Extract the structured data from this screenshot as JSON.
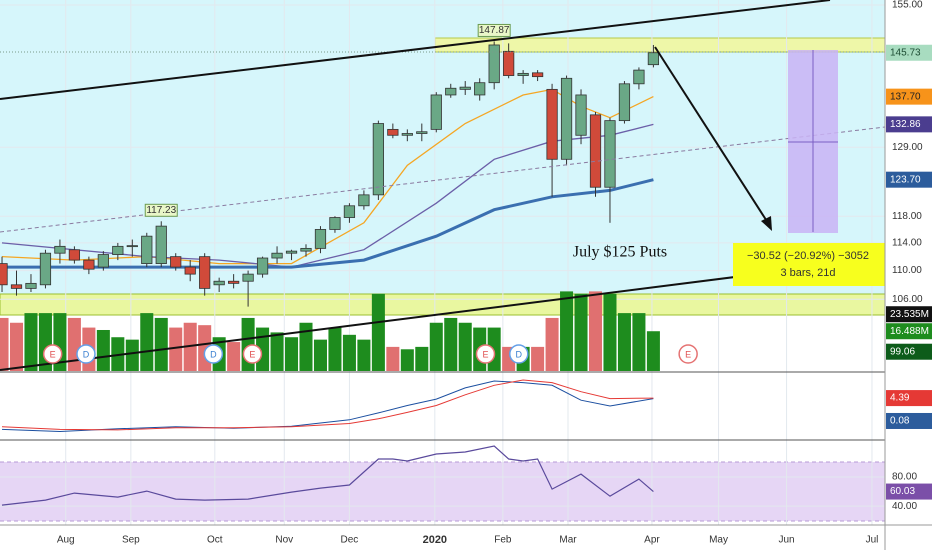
{
  "chart_data": {
    "type": "candlestick",
    "xlim": [
      -0.14,
      61
    ],
    "xticks": [
      {
        "value": 4.4,
        "label": "Aug"
      },
      {
        "value": 8.9,
        "label": "Sep"
      },
      {
        "value": 14.7,
        "label": "Oct"
      },
      {
        "value": 19.5,
        "label": "Nov"
      },
      {
        "value": 24.0,
        "label": "Dec"
      },
      {
        "value": 29.9,
        "label": "2020"
      },
      {
        "value": 34.6,
        "label": "Feb"
      },
      {
        "value": 39.1,
        "label": "Mar"
      },
      {
        "value": 44.9,
        "label": "Apr"
      },
      {
        "value": 49.5,
        "label": "May"
      },
      {
        "value": 54.2,
        "label": "Jun"
      },
      {
        "value": 60.1,
        "label": "Jul"
      }
    ],
    "ylim": [
      96.5,
      156
    ],
    "log": true,
    "grid": true,
    "yticks": [
      {
        "value": 155,
        "label": "155.00"
      },
      {
        "value": 129,
        "label": "129.00"
      },
      {
        "value": 118,
        "label": "118.00"
      },
      {
        "value": 114,
        "label": "114.00"
      },
      {
        "value": 110,
        "label": "110.00"
      },
      {
        "value": 106,
        "label": "106.00"
      }
    ],
    "up_color": "#6aa886",
    "down_color": "#d04a3a",
    "open": [
      111,
      108,
      107.5,
      108,
      112.5,
      113,
      111.5,
      110.5,
      112.3,
      113.5,
      111,
      111,
      112,
      110.5,
      112,
      108,
      108.5,
      108.5,
      109.5,
      111.8,
      112.5,
      112.8,
      113.2,
      116,
      117.8,
      119.6,
      121.3,
      132,
      131,
      131.3,
      132,
      138,
      139,
      138,
      140.2,
      146,
      141.5,
      142,
      139,
      127,
      131,
      134.5,
      122.5,
      133.5,
      140,
      143.5
    ],
    "high": [
      112,
      110,
      109.5,
      113,
      114.5,
      113.5,
      112,
      112.8,
      114,
      114.5,
      115.5,
      117.23,
      112.5,
      111.5,
      112.5,
      109,
      109.5,
      110,
      112,
      113.5,
      113,
      113.8,
      116.5,
      118,
      120,
      122,
      133.5,
      133,
      132,
      133,
      138.5,
      140,
      140.5,
      141,
      147.87,
      147.5,
      142.5,
      142.5,
      140,
      141.5,
      139,
      135,
      134,
      140.5,
      143,
      147.2
    ],
    "low": [
      107,
      106.5,
      107,
      107.5,
      111,
      111,
      109.5,
      110,
      111.5,
      112,
      110.5,
      110.5,
      110,
      108.5,
      106.5,
      107,
      107.5,
      105,
      109,
      111,
      111.5,
      112,
      112.5,
      115.5,
      117,
      119,
      120.5,
      130.5,
      130,
      130,
      131.5,
      137.5,
      138,
      137,
      139,
      141,
      140,
      140.5,
      121,
      126,
      129.5,
      121,
      117,
      133,
      139,
      143
    ],
    "close": [
      108,
      107.5,
      108.2,
      112.5,
      113.5,
      111.5,
      110.2,
      112.3,
      113.5,
      113.6,
      115,
      116.5,
      110.5,
      109.5,
      107.5,
      108.5,
      108.2,
      109.5,
      111.8,
      112.5,
      112.8,
      113.2,
      116,
      117.8,
      119.6,
      121.3,
      133,
      131,
      131.3,
      131.6,
      138,
      139.2,
      139.4,
      140.2,
      147.2,
      141.5,
      141.9,
      141.3,
      127,
      141,
      138,
      122.5,
      133.5,
      140,
      142.5,
      145.73
    ],
    "labeled_highs": [
      11,
      34
    ],
    "lines": [
      {
        "color": "#f5a623",
        "x": [
          0,
          5,
          10,
          15,
          20,
          25,
          28,
          32,
          36,
          38,
          40,
          42,
          45
        ],
        "values": [
          112,
          111.5,
          112,
          111,
          111,
          117,
          126,
          133,
          138,
          139,
          136,
          134,
          137.7
        ]
      },
      {
        "color": "#6b5fa8",
        "x": [
          0,
          10,
          15,
          20,
          25,
          30,
          34,
          38,
          42,
          45
        ],
        "values": [
          114,
          112,
          111.5,
          110.5,
          113,
          120,
          127,
          130,
          131,
          132.86
        ]
      },
      {
        "color": "#3a6fb0",
        "x": [
          0,
          10,
          20,
          25,
          30,
          34,
          38,
          42,
          45
        ],
        "values": [
          110.5,
          110.5,
          110.5,
          111.5,
          115,
          119,
          121,
          122,
          123.7
        ]
      }
    ],
    "badges": [
      {
        "value": 145.73,
        "label": "145.73",
        "color": "#a8dcc0",
        "text_color": "#1d4d33"
      },
      {
        "value": 137.7,
        "label": "137.70",
        "color": "#f7931a",
        "text_color": "#222222"
      },
      {
        "value": 132.86,
        "label": "132.86",
        "color": "#4b3d8f",
        "text_color": "#ffffff"
      },
      {
        "value": 123.7,
        "label": "123.70",
        "color": "#2c5c9c",
        "text_color": "#ffffff"
      },
      {
        "value": 99.06,
        "label": "99.06",
        "color": "#0d5c1a",
        "text_color": "#ffffff"
      }
    ],
    "text": "July $125 Puts",
    "measure": [
      "−30.52 (−20.92%) −3052",
      "3 bars, 21d"
    ],
    "events": [
      {
        "x": 3.5,
        "label": "E"
      },
      {
        "x": 5.8,
        "label": "D"
      },
      {
        "x": 14.6,
        "label": "D"
      },
      {
        "x": 17.3,
        "label": "E"
      },
      {
        "x": 33.4,
        "label": "E"
      },
      {
        "x": 35.7,
        "label": "D"
      },
      {
        "x": 47.4,
        "label": "E"
      }
    ],
    "volume": {
      "ylim": [
        0,
        153.8
      ],
      "up_color": "#1e8c1e",
      "down_color": "#e07070",
      "values": [
        22,
        20,
        24,
        24,
        24,
        22,
        18,
        17,
        14,
        13,
        24,
        22,
        18,
        20,
        19,
        14,
        12,
        22,
        18,
        16,
        14,
        20,
        13,
        18,
        15,
        13,
        32,
        10,
        9,
        10,
        20,
        22,
        20,
        18,
        18,
        10,
        10,
        10,
        22,
        33,
        32,
        33,
        32,
        24,
        24,
        16.488
      ],
      "badges": [
        {
          "value": 23.535,
          "label": "23.535M",
          "color": "#111111",
          "text_color": "#ffffff"
        },
        {
          "value": 16.488,
          "label": "16.488M",
          "color": "#1e8c1e",
          "text_color": "#ffffff"
        }
      ]
    },
    "macd": {
      "ylim": [
        -3.5,
        9.3
      ],
      "lines": [
        {
          "color": "#1c4fa0",
          "x": [
            0,
            4,
            8,
            12,
            16,
            20,
            24,
            26,
            28,
            30,
            32,
            34,
            36,
            38,
            40,
            42,
            45
          ],
          "values": [
            -1.5,
            -1.9,
            -1.4,
            -1.0,
            -1.3,
            -0.9,
            0.3,
            1.6,
            3.0,
            4.2,
            6.3,
            7.6,
            7.3,
            6.8,
            4.0,
            2.9,
            4.3
          ]
        },
        {
          "color": "#e53935",
          "x": [
            0,
            4,
            8,
            12,
            16,
            20,
            24,
            26,
            28,
            30,
            32,
            34,
            36,
            38,
            40,
            42,
            45
          ],
          "values": [
            -1.0,
            -1.5,
            -1.6,
            -1.2,
            -1.2,
            -1.0,
            -0.4,
            0.5,
            1.7,
            3.0,
            5.0,
            6.8,
            7.8,
            7.3,
            5.6,
            4.3,
            4.39
          ]
        }
      ],
      "badges": [
        {
          "value": 4.39,
          "label": "4.39",
          "color": "#e53935",
          "text_color": "#ffffff"
        },
        {
          "value": 0.08,
          "label": "0.08",
          "color": "#2c5c9c",
          "text_color": "#ffffff"
        }
      ]
    },
    "rsi": {
      "ylim": [
        14,
        131
      ],
      "yticks": [
        {
          "value": 80,
          "label": "80.00"
        },
        {
          "value": 40,
          "label": "40.00"
        }
      ],
      "color": "#5a4a9c",
      "x": [
        0,
        3,
        5,
        8,
        10,
        12,
        14,
        17,
        20,
        22,
        24,
        26,
        27,
        28,
        30,
        32,
        34,
        35,
        36,
        37,
        38,
        40,
        42,
        44,
        45
      ],
      "values": [
        41.4,
        48.3,
        57.9,
        52.4,
        60.7,
        49.7,
        48.3,
        49.7,
        59.3,
        64.8,
        69.0,
        104.8,
        104.8,
        102.1,
        111.7,
        114.5,
        122.8,
        104.8,
        102.1,
        104.8,
        63.4,
        84.1,
        53.7,
        77.2,
        60.03
      ],
      "badges": [
        {
          "value": 60.03,
          "label": "60.03",
          "color": "#7b4fa8",
          "text_color": "#ffffff"
        }
      ]
    }
  }
}
